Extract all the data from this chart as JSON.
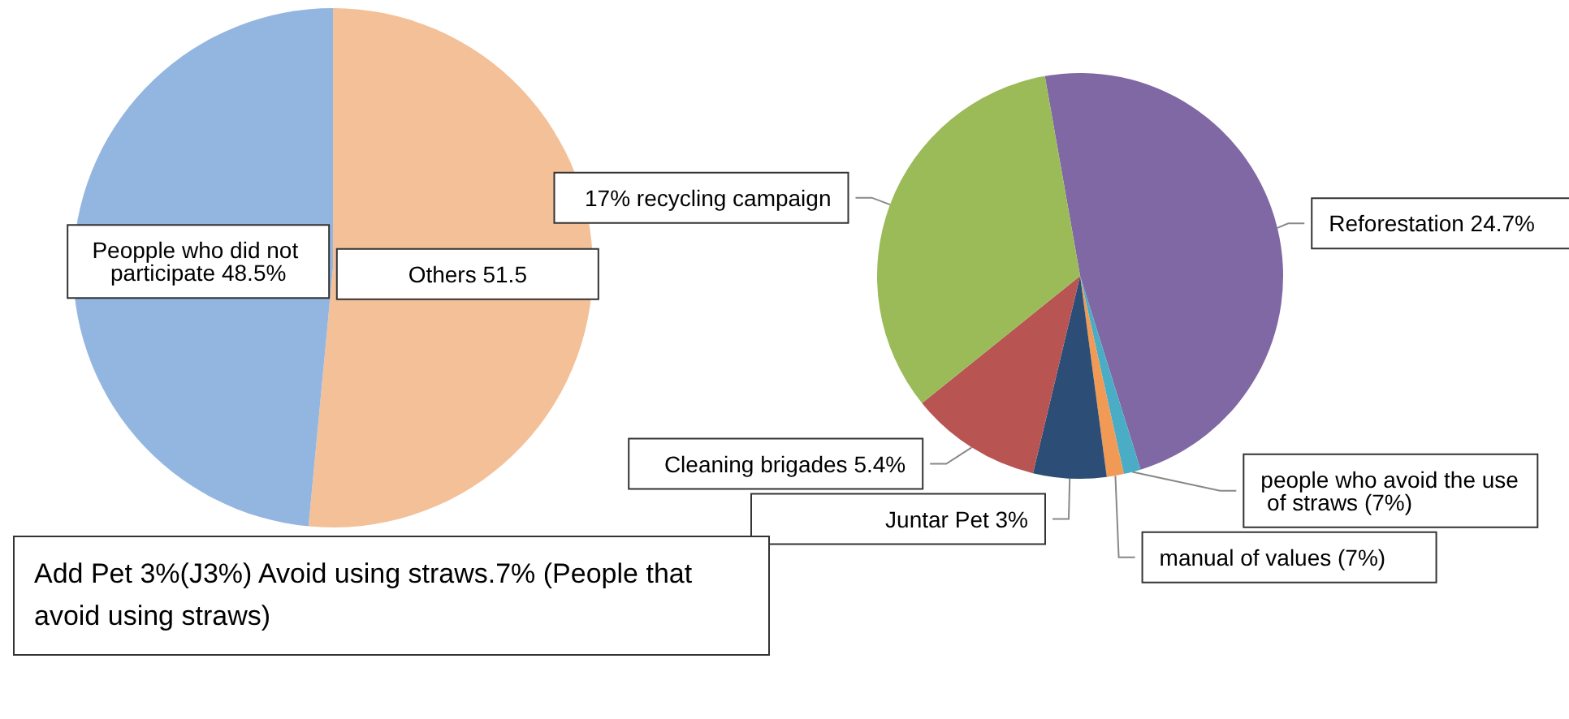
{
  "chart_data": [
    {
      "type": "pie",
      "categories": [
        "Others 51.5",
        "Peopple who did not participate 48.5%"
      ],
      "values": [
        51.5,
        48.5
      ],
      "colors": [
        "#f4c098",
        "#93b6e0"
      ]
    },
    {
      "type": "pie",
      "categories": [
        "Reforestation 24.7%",
        "people who avoid the use of straws (7%)",
        "manual of values (7%)",
        "Juntar Pet 3%",
        "Cleaning brigades 5.4%",
        "17% recycling campaign"
      ],
      "values": [
        24.7,
        0.7,
        0.7,
        3,
        5.4,
        17
      ],
      "colors": [
        "#7f68a3",
        "#4bacc6",
        "#f09a55",
        "#2c4d75",
        "#b85553",
        "#9bbb59"
      ],
      "annotations": [
        "Add Pet 3%(J3%) Avoid using straws.7% (People that avoid using straws)"
      ]
    }
  ]
}
